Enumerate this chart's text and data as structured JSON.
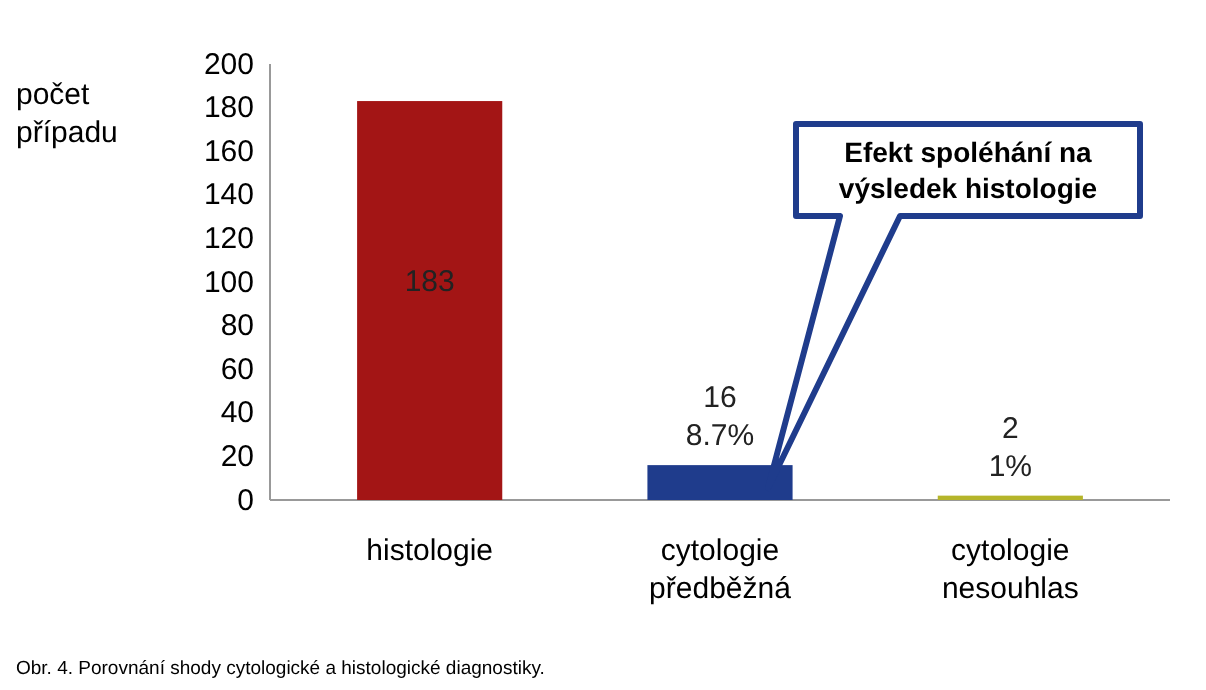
{
  "chart_data": {
    "type": "bar",
    "ylabel": "počet případu",
    "categories": [
      "histologie",
      "cytologie předběžná",
      "cytologie nesouhlas"
    ],
    "values": [
      183,
      16,
      2
    ],
    "colors": [
      "#a31515",
      "#1f3c8c",
      "#b5b52a"
    ],
    "value_labels": [
      "183",
      "16\n8.7%",
      "2\n1%"
    ],
    "ylim": [
      0,
      200
    ],
    "yticks": [
      0,
      20,
      40,
      60,
      80,
      100,
      120,
      140,
      160,
      180,
      200
    ],
    "grid": false,
    "annotations": [
      "Efekt spoléhání na výsledek histologie",
      "Obr. 4. Porovnání shody cytologické a histologické diagnostiky."
    ]
  }
}
